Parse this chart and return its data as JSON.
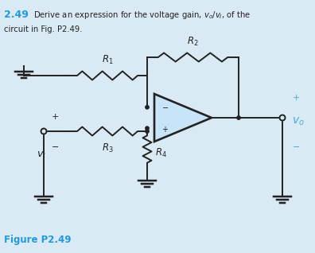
{
  "bg_color": "#daeaf5",
  "title_color": "#2299dd",
  "line_color": "#222222",
  "op_amp_fill": "#c8e4f8",
  "vo_color": "#44aadd",
  "figure_label_color": "#2299dd"
}
